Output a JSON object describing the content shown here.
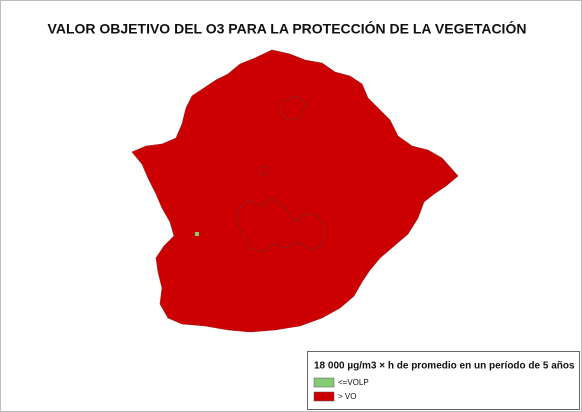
{
  "title": "VALOR OBJETIVO DEL O3 PARA LA PROTECCIÓN DE LA VEGETACIÓN",
  "legend": {
    "title": "18 000 µg/m3 × h de promedio en un período de 5 años",
    "items": [
      {
        "label": "<=VOLP",
        "color": "#86cc76"
      },
      {
        "label": "> VO",
        "color": "#cc0000"
      }
    ]
  }
}
